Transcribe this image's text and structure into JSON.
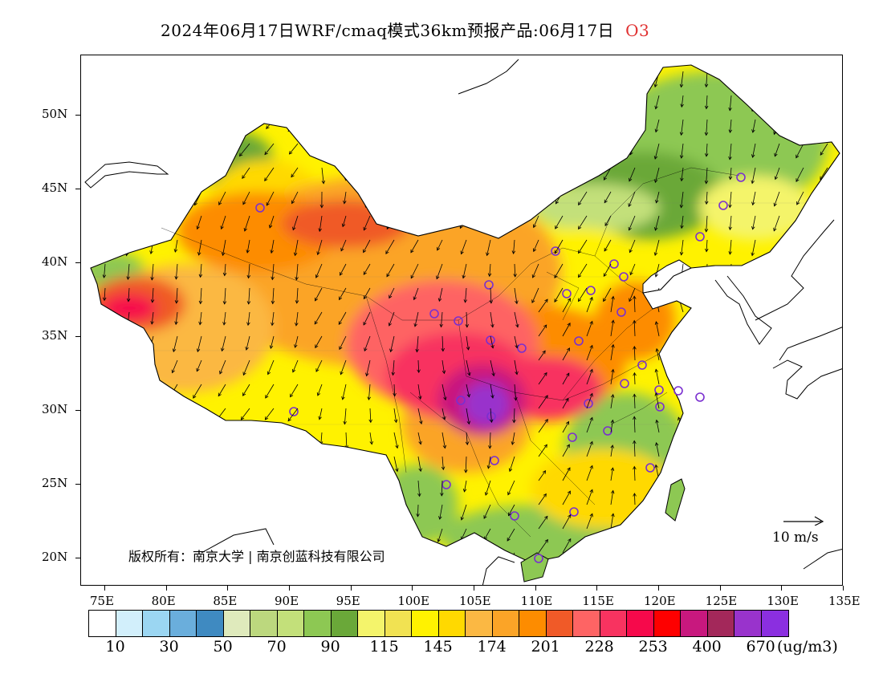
{
  "title": {
    "main": "2024年06月17日WRF/cmaq模式36km预报产品:06月17日",
    "species": "O3"
  },
  "map": {
    "lat_labels": [
      "50N",
      "45N",
      "40N",
      "35N",
      "30N",
      "25N",
      "20N"
    ],
    "lon_labels": [
      "75E",
      "80E",
      "85E",
      "90E",
      "95E",
      "100E",
      "105E",
      "110E",
      "115E",
      "120E",
      "125E",
      "130E",
      "135E"
    ],
    "copyright": "版权所有：南京大学 | 南京创蓝科技有限公司",
    "wind_scale_label": "10 m/s"
  },
  "legend": {
    "colors": [
      "#ffffff",
      "#d2effb",
      "#9bd6f2",
      "#6aaedc",
      "#3f8ac1",
      "#dfeabc",
      "#bcd87e",
      "#c3e07a",
      "#8dc853",
      "#6aa839",
      "#f4f46b",
      "#f1e252",
      "#fff200",
      "#ffd900",
      "#fbb843",
      "#fba427",
      "#fd8c00",
      "#f05a28",
      "#fe6464",
      "#f83360",
      "#f6094b",
      "#fe0000",
      "#c8187e",
      "#a3285a",
      "#9933cc",
      "#8b2fe0"
    ],
    "labels": [
      "10",
      "30",
      "50",
      "70",
      "90",
      "115",
      "145",
      "174",
      "201",
      "228",
      "253",
      "400",
      "670"
    ],
    "unit": "(ug/m3)"
  }
}
